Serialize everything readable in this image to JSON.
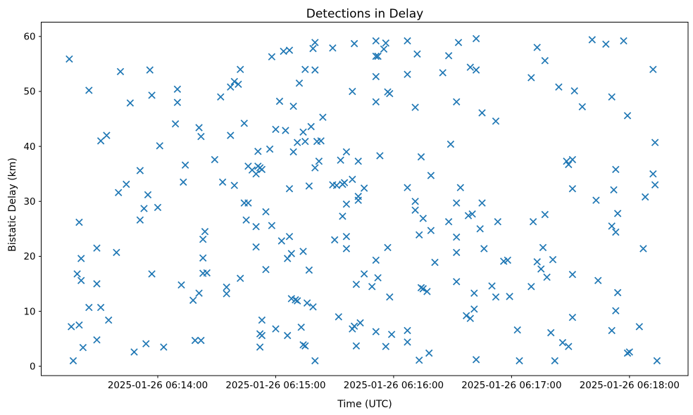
{
  "figure": {
    "title": "Detections in Delay",
    "xlabel": "Time (UTC)",
    "ylabel": "Bistatic Delay (km)",
    "background": "#ffffff",
    "spine_color": "#000000",
    "marker_color": "#1f77b4"
  },
  "chart_data": {
    "type": "scatter",
    "title": "Detections in Delay",
    "xlabel": "Time (UTC)",
    "ylabel": "Bistatic Delay (km)",
    "marker": "x",
    "marker_color": "#1f77b4",
    "legend": null,
    "grid": false,
    "x_unit": "seconds since 2025-01-26 06:13:00 UTC",
    "xlim": [
      0.7,
      329.8
    ],
    "ylim": [
      -1.7,
      62.6
    ],
    "x_ticks": [
      {
        "t": 60,
        "label": "2025-01-26 06:14:00"
      },
      {
        "t": 120,
        "label": "2025-01-26 06:15:00"
      },
      {
        "t": 180,
        "label": "2025-01-26 06:16:00"
      },
      {
        "t": 240,
        "label": "2025-01-26 06:17:00"
      },
      {
        "t": 300,
        "label": "2025-01-26 06:18:00"
      }
    ],
    "y_ticks": [
      0,
      10,
      20,
      30,
      40,
      50,
      60
    ],
    "points": [
      [
        15,
        55.9
      ],
      [
        41,
        53.6
      ],
      [
        56,
        53.9
      ],
      [
        102,
        54.0
      ],
      [
        99,
        51.8
      ],
      [
        101,
        51.3
      ],
      [
        97,
        50.8
      ],
      [
        25,
        50.2
      ],
      [
        70,
        50.4
      ],
      [
        57,
        49.3
      ],
      [
        92,
        49.0
      ],
      [
        46,
        47.9
      ],
      [
        70,
        48.0
      ],
      [
        69,
        44.1
      ],
      [
        104,
        44.2
      ],
      [
        81,
        43.4
      ],
      [
        82,
        41.8
      ],
      [
        97,
        42.0
      ],
      [
        34,
        42.0
      ],
      [
        31,
        41.0
      ],
      [
        61,
        40.1
      ],
      [
        89,
        37.6
      ],
      [
        74,
        36.6
      ],
      [
        51,
        35.6
      ],
      [
        44,
        33.1
      ],
      [
        40,
        31.6
      ],
      [
        73,
        33.5
      ],
      [
        93,
        33.5
      ],
      [
        55,
        31.2
      ],
      [
        99,
        32.9
      ],
      [
        106,
        36.4
      ],
      [
        108,
        35.7
      ],
      [
        111,
        36.4
      ],
      [
        112,
        36.1
      ],
      [
        113,
        35.8
      ],
      [
        110,
        35.0
      ],
      [
        111,
        39.1
      ],
      [
        171,
        59.2
      ],
      [
        187,
        59.2
      ],
      [
        213,
        58.9
      ],
      [
        140,
        58.9
      ],
      [
        139,
        57.8
      ],
      [
        176,
        58.8
      ],
      [
        160,
        58.7
      ],
      [
        149,
        57.9
      ],
      [
        175,
        57.7
      ],
      [
        124,
        57.3
      ],
      [
        127,
        57.5
      ],
      [
        171,
        56.4
      ],
      [
        172,
        56.4
      ],
      [
        192,
        56.8
      ],
      [
        208,
        56.5
      ],
      [
        118,
        56.3
      ],
      [
        219,
        54.4
      ],
      [
        135,
        54.0
      ],
      [
        140,
        53.9
      ],
      [
        205,
        53.4
      ],
      [
        187,
        53.1
      ],
      [
        171,
        52.7
      ],
      [
        132,
        51.5
      ],
      [
        159,
        50.0
      ],
      [
        177,
        49.9
      ],
      [
        178,
        49.6
      ],
      [
        122,
        48.2
      ],
      [
        129,
        47.3
      ],
      [
        171,
        48.1
      ],
      [
        191,
        47.1
      ],
      [
        212,
        48.1
      ],
      [
        144,
        45.3
      ],
      [
        120,
        43.1
      ],
      [
        125,
        42.9
      ],
      [
        138,
        43.6
      ],
      [
        134,
        42.6
      ],
      [
        131,
        40.7
      ],
      [
        135,
        40.9
      ],
      [
        141,
        40.9
      ],
      [
        143,
        41.0
      ],
      [
        117,
        39.5
      ],
      [
        129,
        39.0
      ],
      [
        156,
        39.0
      ],
      [
        153,
        37.5
      ],
      [
        162,
        37.3
      ],
      [
        173,
        38.3
      ],
      [
        194,
        38.1
      ],
      [
        209,
        40.4
      ],
      [
        142,
        37.3
      ],
      [
        140,
        36.1
      ],
      [
        159,
        34.0
      ],
      [
        199,
        34.7
      ],
      [
        149,
        33.0
      ],
      [
        151,
        32.9
      ],
      [
        154,
        33.1
      ],
      [
        155,
        33.4
      ],
      [
        127,
        32.3
      ],
      [
        137,
        32.8
      ],
      [
        165,
        32.4
      ],
      [
        187,
        32.5
      ],
      [
        214,
        32.5
      ],
      [
        162,
        30.9
      ],
      [
        222,
        59.6
      ],
      [
        281,
        59.4
      ],
      [
        288,
        58.6
      ],
      [
        297,
        59.2
      ],
      [
        253,
        58.0
      ],
      [
        257,
        55.6
      ],
      [
        222,
        53.9
      ],
      [
        312,
        54.0
      ],
      [
        250,
        52.5
      ],
      [
        264,
        50.8
      ],
      [
        272,
        50.1
      ],
      [
        291,
        49.0
      ],
      [
        276,
        47.2
      ],
      [
        225,
        46.1
      ],
      [
        232,
        44.6
      ],
      [
        299,
        45.6
      ],
      [
        313,
        40.7
      ],
      [
        268,
        37.3
      ],
      [
        271,
        37.6
      ],
      [
        269,
        36.7
      ],
      [
        293,
        35.8
      ],
      [
        312,
        35.0
      ],
      [
        313,
        33.0
      ],
      [
        271,
        32.3
      ],
      [
        292,
        32.1
      ],
      [
        308,
        30.8
      ],
      [
        53,
        28.7
      ],
      [
        60,
        28.9
      ],
      [
        104,
        29.7
      ],
      [
        106,
        29.7
      ],
      [
        51,
        26.6
      ],
      [
        20,
        26.2
      ],
      [
        105,
        26.6
      ],
      [
        84,
        24.5
      ],
      [
        83,
        23.1
      ],
      [
        29,
        21.5
      ],
      [
        39,
        20.7
      ],
      [
        21,
        19.6
      ],
      [
        83,
        19.7
      ],
      [
        19,
        16.8
      ],
      [
        21,
        15.6
      ],
      [
        29,
        15.0
      ],
      [
        57,
        16.8
      ],
      [
        83,
        16.9
      ],
      [
        85,
        17.0
      ],
      [
        102,
        16.0
      ],
      [
        72,
        14.8
      ],
      [
        81,
        13.3
      ],
      [
        95,
        14.4
      ],
      [
        95,
        13.2
      ],
      [
        78,
        12.0
      ],
      [
        25,
        10.7
      ],
      [
        31,
        10.7
      ],
      [
        35,
        8.4
      ],
      [
        16,
        7.2
      ],
      [
        20,
        7.5
      ],
      [
        29,
        4.8
      ],
      [
        22,
        3.4
      ],
      [
        54,
        4.1
      ],
      [
        63,
        3.5
      ],
      [
        48,
        2.6
      ],
      [
        79,
        4.7
      ],
      [
        82,
        4.7
      ],
      [
        17,
        1.0
      ],
      [
        110,
        25.4
      ],
      [
        110,
        21.7
      ],
      [
        156,
        29.5
      ],
      [
        162,
        30.2
      ],
      [
        191,
        30.0
      ],
      [
        212,
        29.7
      ],
      [
        115,
        28.1
      ],
      [
        154,
        27.3
      ],
      [
        191,
        28.4
      ],
      [
        195,
        26.9
      ],
      [
        218,
        27.4
      ],
      [
        220,
        27.7
      ],
      [
        118,
        25.6
      ],
      [
        208,
        26.3
      ],
      [
        123,
        22.8
      ],
      [
        127,
        23.6
      ],
      [
        193,
        23.9
      ],
      [
        199,
        24.7
      ],
      [
        212,
        23.5
      ],
      [
        150,
        23.0
      ],
      [
        156,
        23.6
      ],
      [
        156,
        21.4
      ],
      [
        177,
        21.6
      ],
      [
        128,
        20.5
      ],
      [
        126,
        19.6
      ],
      [
        134,
        20.9
      ],
      [
        212,
        20.7
      ],
      [
        115,
        17.6
      ],
      [
        137,
        17.5
      ],
      [
        201,
        18.9
      ],
      [
        171,
        19.3
      ],
      [
        165,
        16.8
      ],
      [
        172,
        16.1
      ],
      [
        161,
        14.9
      ],
      [
        169,
        14.5
      ],
      [
        212,
        15.4
      ],
      [
        194,
        14.3
      ],
      [
        195,
        14.1
      ],
      [
        197,
        13.6
      ],
      [
        178,
        12.6
      ],
      [
        128,
        12.3
      ],
      [
        130,
        12.1
      ],
      [
        131,
        11.9
      ],
      [
        136,
        11.5
      ],
      [
        139,
        10.8
      ],
      [
        221,
        13.3
      ],
      [
        221,
        10.4
      ],
      [
        152,
        9.0
      ],
      [
        217,
        9.2
      ],
      [
        219,
        8.7
      ],
      [
        163,
        7.9
      ],
      [
        160,
        7.3
      ],
      [
        159,
        6.8
      ],
      [
        113,
        8.4
      ],
      [
        120,
        6.8
      ],
      [
        112,
        5.9
      ],
      [
        113,
        5.6
      ],
      [
        126,
        5.6
      ],
      [
        133,
        7.1
      ],
      [
        171,
        6.3
      ],
      [
        179,
        5.8
      ],
      [
        187,
        6.5
      ],
      [
        112,
        3.5
      ],
      [
        134,
        3.9
      ],
      [
        135,
        3.7
      ],
      [
        161,
        3.7
      ],
      [
        176,
        3.6
      ],
      [
        187,
        4.4
      ],
      [
        198,
        2.4
      ],
      [
        193,
        1.1
      ],
      [
        140,
        1.0
      ],
      [
        225,
        29.7
      ],
      [
        283,
        30.2
      ],
      [
        233,
        26.3
      ],
      [
        294,
        27.8
      ],
      [
        224,
        25.0
      ],
      [
        251,
        26.3
      ],
      [
        257,
        27.6
      ],
      [
        291,
        25.5
      ],
      [
        293,
        24.4
      ],
      [
        226,
        21.4
      ],
      [
        256,
        21.6
      ],
      [
        307,
        21.4
      ],
      [
        236,
        19.1
      ],
      [
        238,
        19.3
      ],
      [
        253,
        19.0
      ],
      [
        261,
        19.4
      ],
      [
        255,
        17.7
      ],
      [
        258,
        16.2
      ],
      [
        271,
        16.7
      ],
      [
        284,
        15.6
      ],
      [
        230,
        14.6
      ],
      [
        232,
        12.6
      ],
      [
        239,
        12.7
      ],
      [
        250,
        14.5
      ],
      [
        294,
        13.4
      ],
      [
        293,
        10.1
      ],
      [
        271,
        8.9
      ],
      [
        243,
        6.6
      ],
      [
        260,
        6.1
      ],
      [
        291,
        6.5
      ],
      [
        305,
        7.2
      ],
      [
        266,
        4.3
      ],
      [
        269,
        3.6
      ],
      [
        299,
        2.4
      ],
      [
        300,
        2.6
      ],
      [
        222,
        1.2
      ],
      [
        244,
        1.0
      ],
      [
        262,
        1.0
      ],
      [
        314,
        1.0
      ]
    ]
  }
}
